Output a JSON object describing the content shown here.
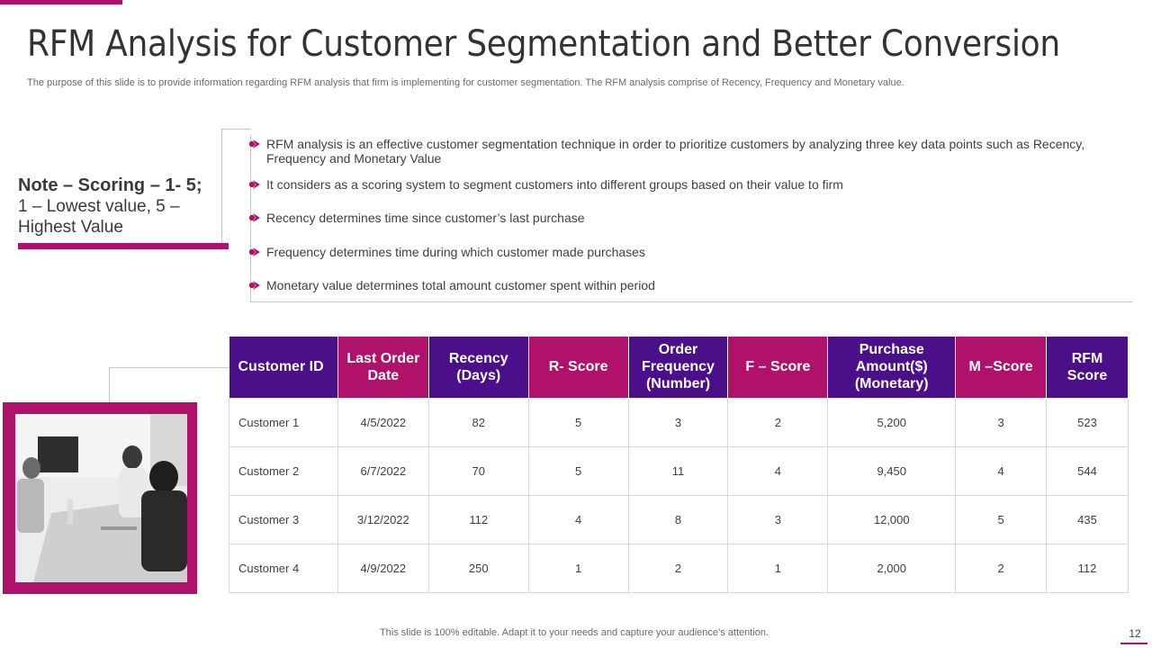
{
  "title": "RFM Analysis for Customer Segmentation and Better Conversion",
  "subtitle": "The purpose of this slide is to provide information regarding RFM analysis that firm is implementing for customer segmentation. The RFM analysis comprise of Recency, Frequency and Monetary value.",
  "note": {
    "bold": "Note – Scoring – 1- 5;",
    "text": "1 – Lowest value, 5 – Highest Value"
  },
  "bullets": [
    "RFM analysis is an effective customer segmentation technique in order to prioritize customers by analyzing three key data points such as Recency, Frequency and Monetary Value",
    "It considers as a scoring system to segment customers into different groups based on their value to firm",
    "Recency determines time since customer’s last purchase",
    "Frequency determines time during which customer made purchases",
    "Monetary value determines total amount customer spent within period"
  ],
  "table": {
    "headers": [
      "Customer ID",
      "Last Order Date",
      "Recency (Days)",
      "R- Score",
      "Order Frequency (Number)",
      "F – Score",
      "Purchase Amount($) (Monetary)",
      "M –Score",
      "RFM Score"
    ],
    "rows": [
      [
        "Customer 1",
        "4/5/2022",
        "82",
        "5",
        "3",
        "2",
        "5,200",
        "3",
        "523"
      ],
      [
        "Customer 2",
        "6/7/2022",
        "70",
        "5",
        "11",
        "4",
        "9,450",
        "4",
        "544"
      ],
      [
        "Customer 3",
        "3/12/2022",
        "112",
        "4",
        "8",
        "3",
        "12,000",
        "5",
        "435"
      ],
      [
        "Customer 4",
        "4/9/2022",
        "250",
        "1",
        "2",
        "1",
        "2,000",
        "2",
        "112"
      ]
    ]
  },
  "footer": "This slide is 100% editable. Adapt it to your needs and capture your audience’s attention.",
  "page_number": "12",
  "colors": {
    "accent": "#b0126b",
    "header_purple": "#4b0f8a"
  },
  "icons": {
    "bullet": "chevron-arrow-icon",
    "photo": "meeting-photo"
  }
}
